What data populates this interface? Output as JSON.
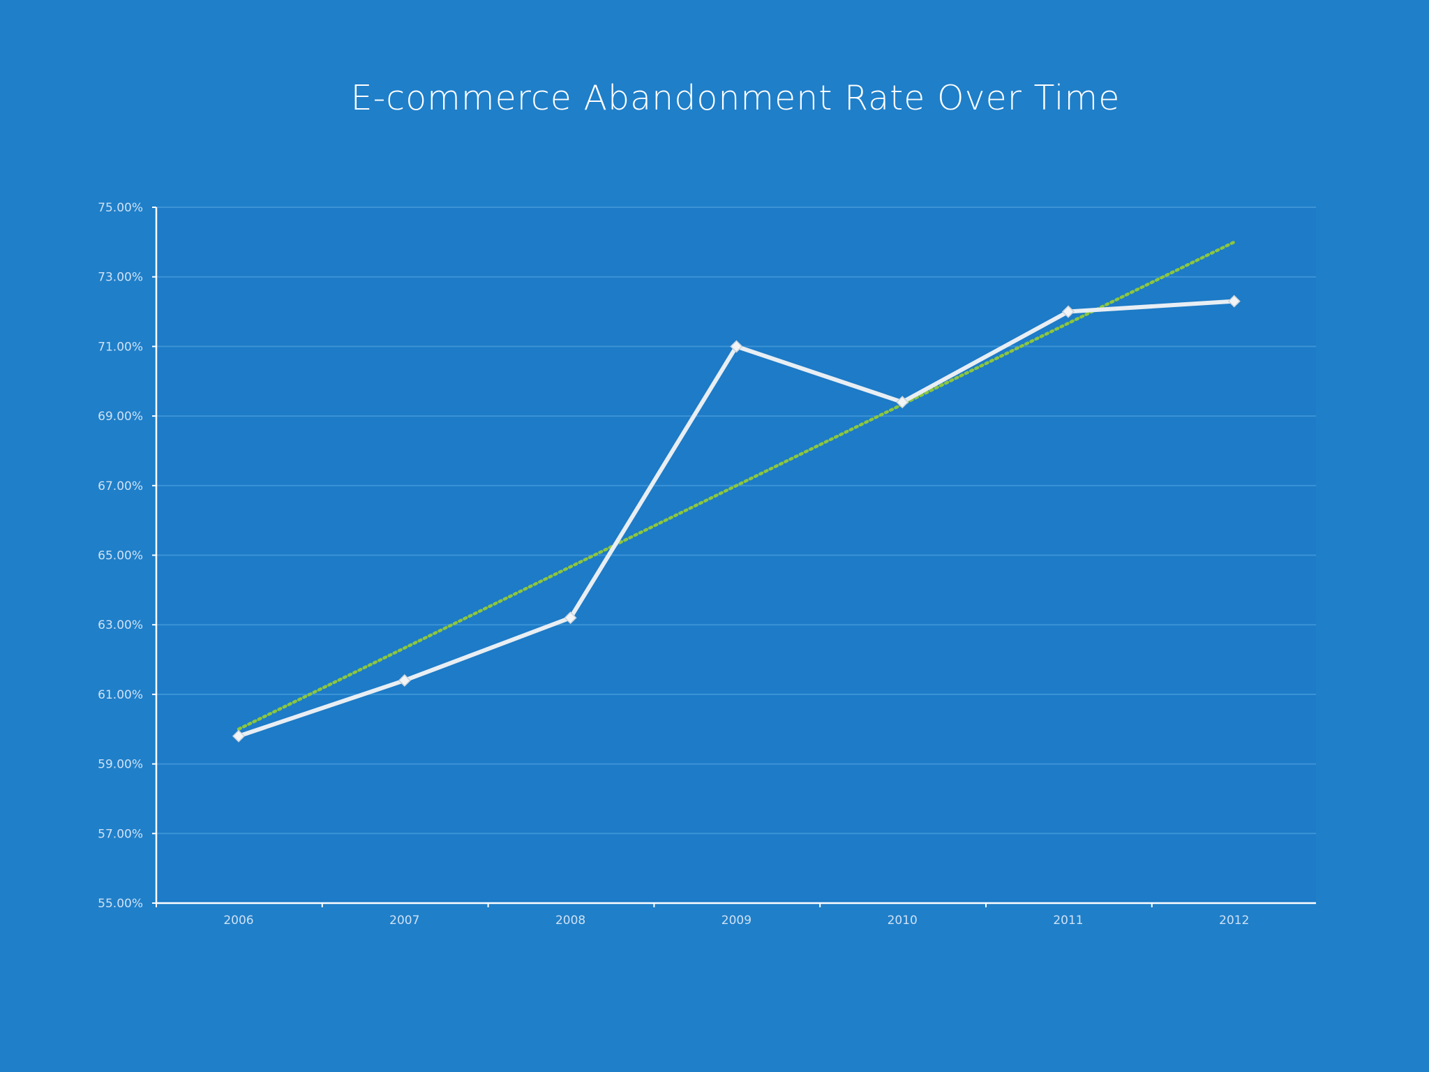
{
  "colors": {
    "background": "#1f7fc9",
    "plot_background": "#1d7bc7",
    "axis": "#ffffff",
    "gridline": "#3d93d6",
    "series_line": "#e8eef3",
    "trendline": "#8cc63f",
    "tick_text": "#cfe2f4"
  },
  "chart_data": {
    "type": "line",
    "title": "E-commerce Abandonment Rate Over Time",
    "xlabel": "",
    "ylabel": "",
    "categories": [
      "2006",
      "2007",
      "2008",
      "2009",
      "2010",
      "2011",
      "2012"
    ],
    "series": [
      {
        "values": [
          59.8,
          61.4,
          63.2,
          71.0,
          69.4,
          72.0,
          72.3
        ]
      }
    ],
    "trendline": {
      "style": "dotted",
      "start_value": 60.0,
      "end_value": 74.0
    },
    "ylim": [
      55,
      75
    ],
    "yticks": [
      55,
      57,
      59,
      61,
      63,
      65,
      67,
      69,
      71,
      73,
      75
    ],
    "ytick_labels": [
      "55.00%",
      "57.00%",
      "59.00%",
      "61.00%",
      "63.00%",
      "65.00%",
      "67.00%",
      "69.00%",
      "71.00%",
      "73.00%",
      "75.00%"
    ],
    "grid": true,
    "legend": "none",
    "marker": "diamond-icon"
  }
}
